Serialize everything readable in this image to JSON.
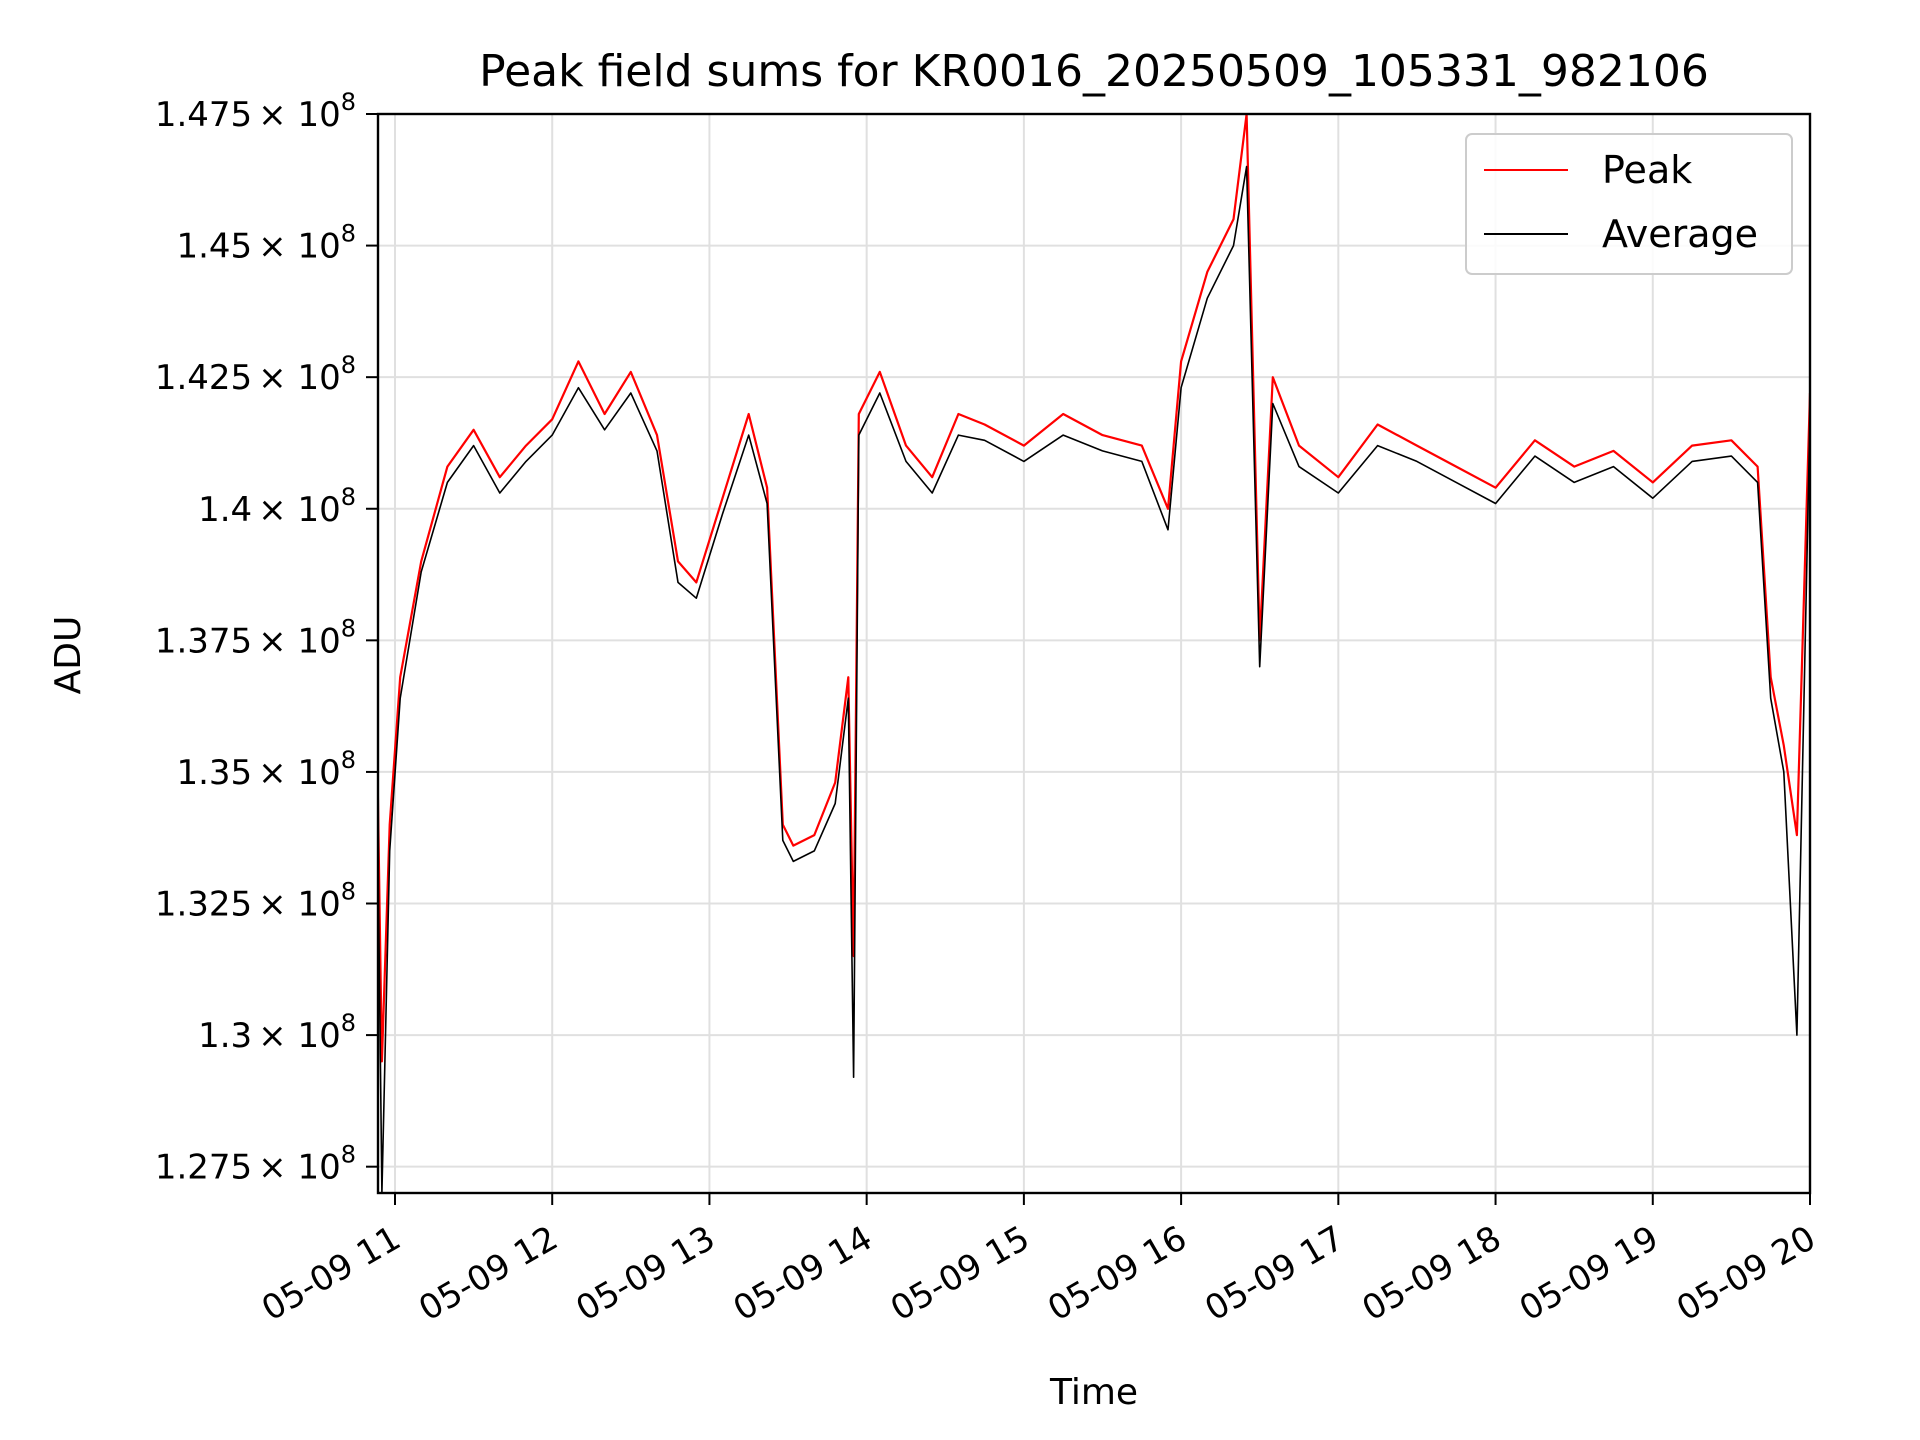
{
  "chart_data": {
    "type": "line",
    "title": "Peak field sums for KR0016_20250509_105331_982106",
    "xlabel": "Time",
    "ylabel": "ADU",
    "x_start": "2025-05-09T10:53:31",
    "x_end": "2025-05-09T20:00:00",
    "x_ticks": [
      {
        "value": "2025-05-09T11:00",
        "label": "05-09 11"
      },
      {
        "value": "2025-05-09T12:00",
        "label": "05-09 12"
      },
      {
        "value": "2025-05-09T13:00",
        "label": "05-09 13"
      },
      {
        "value": "2025-05-09T14:00",
        "label": "05-09 14"
      },
      {
        "value": "2025-05-09T15:00",
        "label": "05-09 15"
      },
      {
        "value": "2025-05-09T16:00",
        "label": "05-09 16"
      },
      {
        "value": "2025-05-09T17:00",
        "label": "05-09 17"
      },
      {
        "value": "2025-05-09T18:00",
        "label": "05-09 18"
      },
      {
        "value": "2025-05-09T19:00",
        "label": "05-09 19"
      },
      {
        "value": "2025-05-09T20:00",
        "label": "05-09 20"
      }
    ],
    "ylim": [
      127000000,
      147500000
    ],
    "y_ticks": [
      {
        "value": 127500000,
        "mantissa": "1.275"
      },
      {
        "value": 130000000,
        "mantissa": "1.3"
      },
      {
        "value": 132500000,
        "mantissa": "1.325"
      },
      {
        "value": 135000000,
        "mantissa": "1.35"
      },
      {
        "value": 137500000,
        "mantissa": "1.375"
      },
      {
        "value": 140000000,
        "mantissa": "1.4"
      },
      {
        "value": 142500000,
        "mantissa": "1.425"
      },
      {
        "value": 145000000,
        "mantissa": "1.45"
      },
      {
        "value": 147500000,
        "mantissa": "1.475"
      }
    ],
    "y_tick_multiplier": "× 10",
    "y_tick_exponent": "8",
    "grid": true,
    "legend_position": "top-right",
    "series": [
      {
        "name": "Peak",
        "color": "#ff0000",
        "x": [
          "2025-05-09T10:53",
          "2025-05-09T10:55",
          "2025-05-09T10:58",
          "2025-05-09T11:02",
          "2025-05-09T11:10",
          "2025-05-09T11:20",
          "2025-05-09T11:30",
          "2025-05-09T11:40",
          "2025-05-09T11:50",
          "2025-05-09T12:00",
          "2025-05-09T12:10",
          "2025-05-09T12:20",
          "2025-05-09T12:30",
          "2025-05-09T12:40",
          "2025-05-09T12:48",
          "2025-05-09T12:55",
          "2025-05-09T13:05",
          "2025-05-09T13:15",
          "2025-05-09T13:22",
          "2025-05-09T13:28",
          "2025-05-09T13:32",
          "2025-05-09T13:40",
          "2025-05-09T13:48",
          "2025-05-09T13:53",
          "2025-05-09T13:55",
          "2025-05-09T13:57",
          "2025-05-09T14:05",
          "2025-05-09T14:15",
          "2025-05-09T14:25",
          "2025-05-09T14:35",
          "2025-05-09T14:45",
          "2025-05-09T15:00",
          "2025-05-09T15:15",
          "2025-05-09T15:30",
          "2025-05-09T15:45",
          "2025-05-09T15:55",
          "2025-05-09T16:00",
          "2025-05-09T16:10",
          "2025-05-09T16:20",
          "2025-05-09T16:25",
          "2025-05-09T16:30",
          "2025-05-09T16:35",
          "2025-05-09T16:45",
          "2025-05-09T17:00",
          "2025-05-09T17:15",
          "2025-05-09T17:30",
          "2025-05-09T17:45",
          "2025-05-09T18:00",
          "2025-05-09T18:15",
          "2025-05-09T18:30",
          "2025-05-09T18:45",
          "2025-05-09T19:00",
          "2025-05-09T19:15",
          "2025-05-09T19:30",
          "2025-05-09T19:40",
          "2025-05-09T19:45",
          "2025-05-09T19:50",
          "2025-05-09T19:55",
          "2025-05-09T20:00"
        ],
        "values": [
          136200000,
          129500000,
          134000000,
          136800000,
          139000000,
          140800000,
          141500000,
          140600000,
          141200000,
          141700000,
          142800000,
          141800000,
          142600000,
          141400000,
          139000000,
          138600000,
          140200000,
          141800000,
          140400000,
          134000000,
          133600000,
          133800000,
          134800000,
          136800000,
          131500000,
          141800000,
          142600000,
          141200000,
          140600000,
          141800000,
          141600000,
          141200000,
          141800000,
          141400000,
          141200000,
          140000000,
          142800000,
          144500000,
          145500000,
          147500000,
          137500000,
          142500000,
          141200000,
          140600000,
          141600000,
          141200000,
          140800000,
          140400000,
          141300000,
          140800000,
          141100000,
          140500000,
          141200000,
          141300000,
          140800000,
          136800000,
          135500000,
          133800000,
          142200000
        ]
      },
      {
        "name": "Average",
        "color": "#000000",
        "x": [
          "2025-05-09T10:53",
          "2025-05-09T10:55",
          "2025-05-09T10:58",
          "2025-05-09T11:02",
          "2025-05-09T11:10",
          "2025-05-09T11:20",
          "2025-05-09T11:30",
          "2025-05-09T11:40",
          "2025-05-09T11:50",
          "2025-05-09T12:00",
          "2025-05-09T12:10",
          "2025-05-09T12:20",
          "2025-05-09T12:30",
          "2025-05-09T12:40",
          "2025-05-09T12:48",
          "2025-05-09T12:55",
          "2025-05-09T13:05",
          "2025-05-09T13:15",
          "2025-05-09T13:22",
          "2025-05-09T13:28",
          "2025-05-09T13:32",
          "2025-05-09T13:40",
          "2025-05-09T13:48",
          "2025-05-09T13:53",
          "2025-05-09T13:55",
          "2025-05-09T13:57",
          "2025-05-09T14:05",
          "2025-05-09T14:15",
          "2025-05-09T14:25",
          "2025-05-09T14:35",
          "2025-05-09T14:45",
          "2025-05-09T15:00",
          "2025-05-09T15:15",
          "2025-05-09T15:30",
          "2025-05-09T15:45",
          "2025-05-09T15:55",
          "2025-05-09T16:00",
          "2025-05-09T16:10",
          "2025-05-09T16:20",
          "2025-05-09T16:25",
          "2025-05-09T16:30",
          "2025-05-09T16:35",
          "2025-05-09T16:45",
          "2025-05-09T17:00",
          "2025-05-09T17:15",
          "2025-05-09T17:30",
          "2025-05-09T17:45",
          "2025-05-09T18:00",
          "2025-05-09T18:15",
          "2025-05-09T18:30",
          "2025-05-09T18:45",
          "2025-05-09T19:00",
          "2025-05-09T19:15",
          "2025-05-09T19:30",
          "2025-05-09T19:40",
          "2025-05-09T19:45",
          "2025-05-09T19:50",
          "2025-05-09T19:55",
          "2025-05-09T20:00"
        ],
        "values": [
          135800000,
          127000000,
          133500000,
          136400000,
          138800000,
          140500000,
          141200000,
          140300000,
          140900000,
          141400000,
          142300000,
          141500000,
          142200000,
          141100000,
          138600000,
          138300000,
          139900000,
          141400000,
          140100000,
          133700000,
          133300000,
          133500000,
          134400000,
          136400000,
          129200000,
          141400000,
          142200000,
          140900000,
          140300000,
          141400000,
          141300000,
          140900000,
          141400000,
          141100000,
          140900000,
          139600000,
          142300000,
          144000000,
          145000000,
          146500000,
          137000000,
          142000000,
          140800000,
          140300000,
          141200000,
          140900000,
          140500000,
          140100000,
          141000000,
          140500000,
          140800000,
          140200000,
          140900000,
          141000000,
          140500000,
          136400000,
          135000000,
          130000000,
          141800000
        ]
      }
    ]
  }
}
